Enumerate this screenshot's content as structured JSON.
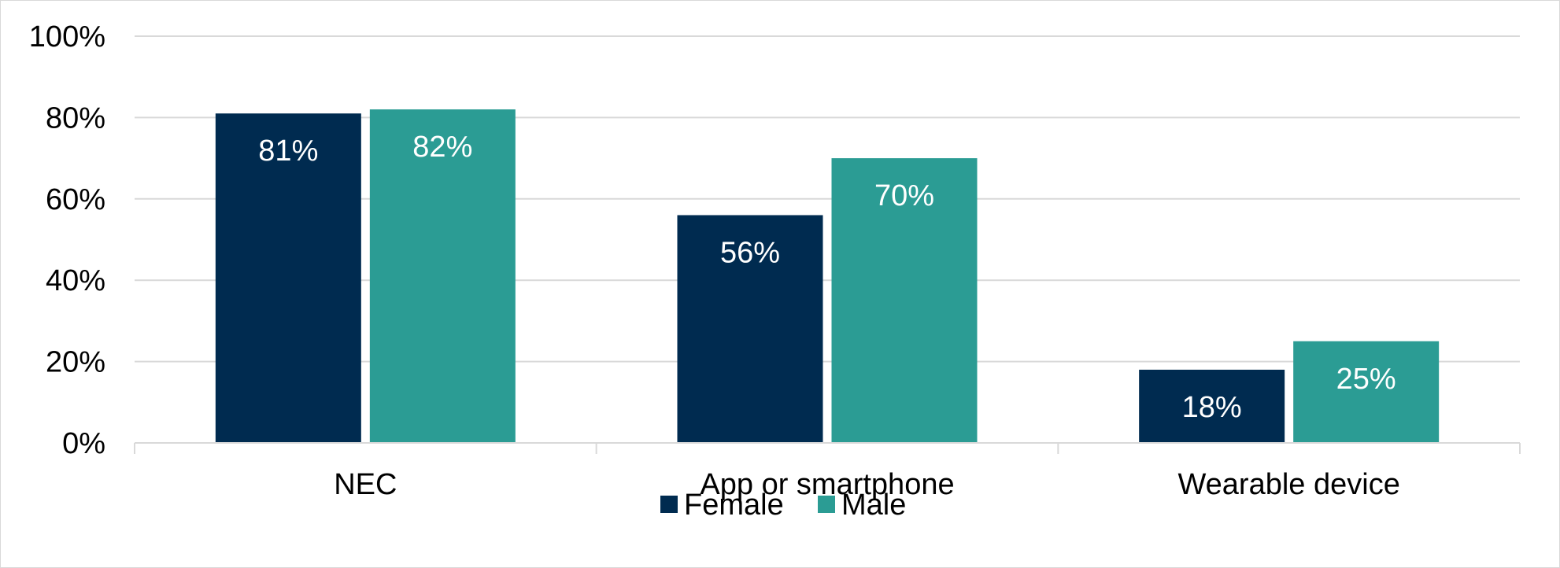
{
  "chart_data": {
    "type": "bar",
    "categories": [
      "NEC",
      "App or smartphone",
      "Wearable device"
    ],
    "series": [
      {
        "name": "Female",
        "values": [
          81,
          56,
          18
        ],
        "labels": [
          "81%",
          "56%",
          "18%"
        ],
        "color": "#002b50"
      },
      {
        "name": "Male",
        "values": [
          82,
          70,
          25
        ],
        "labels": [
          "82%",
          "70%",
          "25%"
        ],
        "color": "#2b9c94"
      }
    ],
    "ylim": [
      0,
      100
    ],
    "yticks": [
      0,
      20,
      40,
      60,
      80,
      100
    ],
    "ytick_labels": [
      "0%",
      "20%",
      "40%",
      "60%",
      "80%",
      "100%"
    ],
    "grid": true,
    "legend_position": "bottom",
    "title": "",
    "xlabel": "",
    "ylabel": ""
  }
}
